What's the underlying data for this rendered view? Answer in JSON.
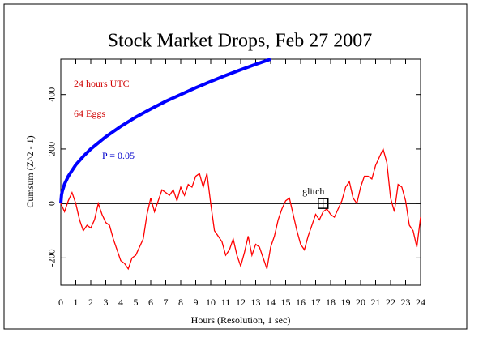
{
  "chart_data": {
    "type": "line",
    "title": "Stock Market Drops, Feb 27 2007",
    "xlabel": "Hours (Resolution, 1 sec)",
    "ylabel": "Cumsum (Z^2 - 1)",
    "annotations": [
      "24 hours UTC",
      "64 Eggs",
      "P = 0.05"
    ],
    "glitch": {
      "label": "glitch",
      "x": 17.5,
      "y": 0
    },
    "reference_line": 0,
    "xlim": [
      0,
      24
    ],
    "xticks": [
      0,
      1,
      2,
      3,
      4,
      5,
      6,
      7,
      8,
      9,
      10,
      11,
      12,
      13,
      14,
      15,
      16,
      17,
      18,
      19,
      20,
      21,
      22,
      23,
      24
    ],
    "ylim": [
      -300,
      530
    ],
    "yticks": [
      -200,
      0,
      200,
      400
    ],
    "series": [
      {
        "name": "Cumsum",
        "color": "#ff0000",
        "x": [
          0,
          0.25,
          0.5,
          0.75,
          1,
          1.25,
          1.5,
          1.75,
          2,
          2.25,
          2.5,
          2.75,
          3,
          3.25,
          3.5,
          3.75,
          4,
          4.25,
          4.5,
          4.75,
          5,
          5.25,
          5.5,
          5.75,
          6,
          6.25,
          6.5,
          6.75,
          7,
          7.25,
          7.5,
          7.75,
          8,
          8.25,
          8.5,
          8.75,
          9,
          9.25,
          9.5,
          9.75,
          10,
          10.25,
          10.5,
          10.75,
          11,
          11.25,
          11.5,
          11.75,
          12,
          12.25,
          12.5,
          12.75,
          13,
          13.25,
          13.5,
          13.75,
          14,
          14.25,
          14.5,
          14.75,
          15,
          15.25,
          15.5,
          15.75,
          16,
          16.25,
          16.5,
          16.75,
          17,
          17.25,
          17.5,
          17.75,
          18,
          18.25,
          18.5,
          18.75,
          19,
          19.25,
          19.5,
          19.75,
          20,
          20.25,
          20.5,
          20.75,
          21,
          21.25,
          21.5,
          21.75,
          22,
          22.25,
          22.5,
          22.75,
          23,
          23.25,
          23.5,
          23.75,
          24
        ],
        "values": [
          0,
          -30,
          10,
          40,
          0,
          -60,
          -100,
          -80,
          -90,
          -60,
          0,
          -40,
          -70,
          -80,
          -130,
          -170,
          -210,
          -220,
          -240,
          -200,
          -190,
          -160,
          -130,
          -40,
          20,
          -30,
          10,
          50,
          40,
          30,
          50,
          10,
          60,
          30,
          70,
          60,
          100,
          110,
          60,
          110,
          0,
          -100,
          -120,
          -140,
          -190,
          -170,
          -130,
          -190,
          -230,
          -180,
          -120,
          -190,
          -150,
          -160,
          -200,
          -240,
          -160,
          -120,
          -60,
          -20,
          10,
          20,
          -40,
          -100,
          -150,
          -170,
          -120,
          -80,
          -40,
          -60,
          -30,
          -20,
          -40,
          -50,
          -20,
          10,
          60,
          80,
          20,
          0,
          60,
          100,
          100,
          90,
          140,
          170,
          200,
          150,
          20,
          -30,
          70,
          60,
          10,
          -80,
          -100,
          -160,
          -50
        ]
      },
      {
        "name": "P = 0.05 envelope",
        "color": "#0000ff",
        "x": [
          0,
          0.05,
          0.1,
          0.25,
          0.5,
          1,
          1.5,
          2,
          3,
          4,
          5,
          6,
          7,
          8,
          9,
          10,
          11,
          12,
          13,
          14
        ],
        "values": [
          0,
          32,
          45,
          71,
          100,
          142,
          173,
          200,
          245,
          283,
          317,
          347,
          375,
          400,
          425,
          448,
          470,
          491,
          511,
          530
        ]
      }
    ]
  }
}
